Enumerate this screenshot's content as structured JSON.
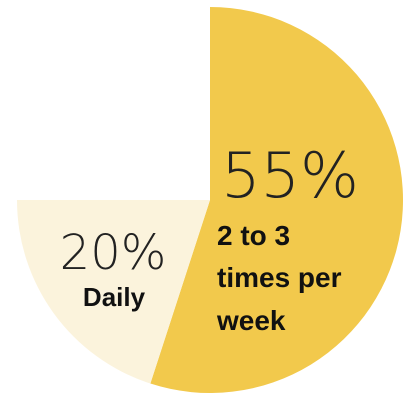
{
  "chart_data": {
    "type": "pie",
    "start_angle_deg": 0,
    "direction": "clockwise",
    "slices": [
      {
        "value": 55,
        "percent_label": "55%",
        "label_lines": [
          "2 to 3",
          "times per",
          "week"
        ],
        "color": "#f2c94c"
      },
      {
        "value": 20,
        "percent_label": "20%",
        "label_lines": [
          "Daily"
        ],
        "color": "#fbf3dc"
      }
    ]
  }
}
